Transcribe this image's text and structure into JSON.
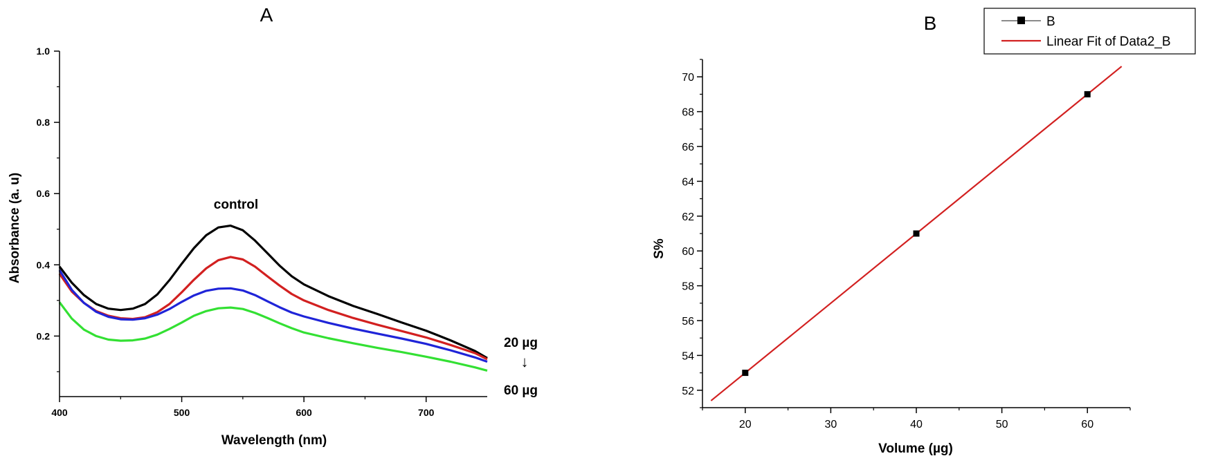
{
  "chart_data": [
    {
      "type": "line",
      "panel_label": "A",
      "xlabel": "Wavelength (nm)",
      "ylabel": "Absorbance (a. u)",
      "xlim": [
        400,
        750
      ],
      "ylim": [
        0.03,
        1.0
      ],
      "x_ticks": [
        400,
        500,
        600,
        700
      ],
      "y_ticks": [
        0.2,
        0.4,
        0.6,
        0.8,
        1.0
      ],
      "y_tick_labels": [
        "0.2",
        "0.4",
        "0.6",
        "0.8",
        "1.0"
      ],
      "grid": false,
      "annotations": {
        "control": "control",
        "top_dose": "20 µg",
        "bottom_dose": "60 µg",
        "arrow": "↓"
      },
      "x": [
        400,
        410,
        420,
        430,
        440,
        450,
        460,
        470,
        480,
        490,
        500,
        510,
        520,
        530,
        540,
        550,
        560,
        570,
        580,
        590,
        600,
        620,
        640,
        660,
        680,
        700,
        720,
        740,
        750
      ],
      "series": [
        {
          "color": "#000000",
          "values": [
            0.395,
            0.35,
            0.315,
            0.29,
            0.277,
            0.273,
            0.277,
            0.29,
            0.317,
            0.357,
            0.403,
            0.447,
            0.483,
            0.505,
            0.51,
            0.497,
            0.468,
            0.433,
            0.398,
            0.368,
            0.345,
            0.312,
            0.285,
            0.262,
            0.238,
            0.215,
            0.188,
            0.158,
            0.138
          ]
        },
        {
          "color": "#d22020",
          "values": [
            0.375,
            0.325,
            0.293,
            0.27,
            0.257,
            0.25,
            0.248,
            0.253,
            0.267,
            0.29,
            0.323,
            0.358,
            0.39,
            0.413,
            0.422,
            0.415,
            0.395,
            0.368,
            0.342,
            0.318,
            0.3,
            0.273,
            0.251,
            0.232,
            0.214,
            0.196,
            0.175,
            0.152,
            0.135
          ]
        },
        {
          "color": "#1f24d8",
          "values": [
            0.385,
            0.33,
            0.293,
            0.268,
            0.254,
            0.247,
            0.246,
            0.25,
            0.26,
            0.276,
            0.296,
            0.314,
            0.327,
            0.333,
            0.334,
            0.328,
            0.315,
            0.298,
            0.281,
            0.266,
            0.255,
            0.237,
            0.221,
            0.207,
            0.193,
            0.178,
            0.16,
            0.14,
            0.128
          ]
        },
        {
          "color": "#33e033",
          "values": [
            0.295,
            0.249,
            0.218,
            0.2,
            0.19,
            0.187,
            0.188,
            0.193,
            0.204,
            0.22,
            0.238,
            0.257,
            0.27,
            0.278,
            0.28,
            0.276,
            0.265,
            0.251,
            0.236,
            0.222,
            0.21,
            0.194,
            0.18,
            0.167,
            0.155,
            0.142,
            0.128,
            0.112,
            0.103
          ]
        }
      ]
    },
    {
      "type": "scatter",
      "panel_label": "B",
      "xlabel": "Volume (µg)",
      "ylabel": "S%",
      "xlim": [
        15,
        65
      ],
      "ylim": [
        51,
        71
      ],
      "x_ticks": [
        20,
        30,
        40,
        50,
        60
      ],
      "y_ticks": [
        52,
        54,
        56,
        58,
        60,
        62,
        64,
        66,
        68,
        70
      ],
      "grid": false,
      "legend_position": "top-right",
      "series": [
        {
          "name": "B",
          "color": "#000000",
          "marker": "square",
          "x": [
            20,
            40,
            60
          ],
          "values": [
            53,
            61,
            69
          ]
        },
        {
          "name": "Linear Fit of Data2_B",
          "color": "#d22020",
          "type": "line",
          "x": [
            16,
            64
          ],
          "values": [
            51.4,
            70.6
          ]
        }
      ]
    }
  ]
}
